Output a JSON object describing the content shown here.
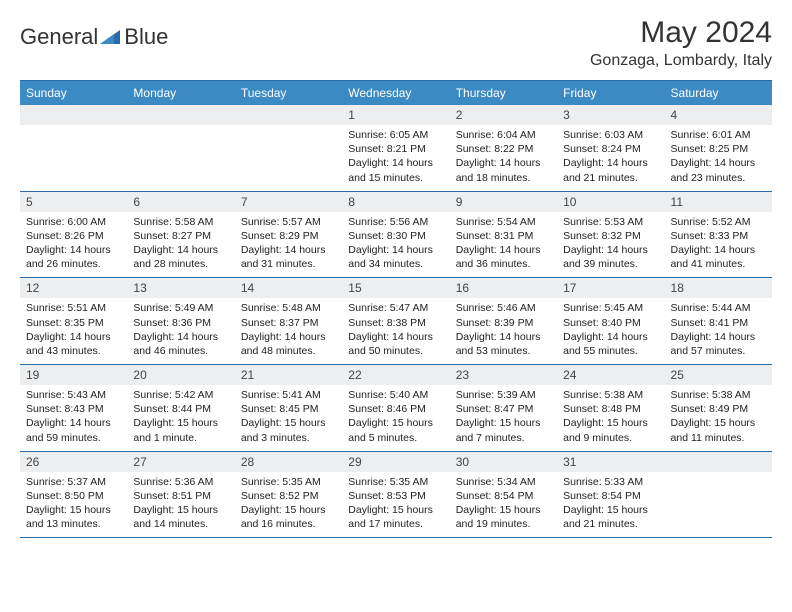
{
  "colors": {
    "header_bar": "#3b8ac4",
    "border": "#2a6ca8",
    "daynum_bg": "#eceef0",
    "text": "#222222",
    "title": "#333333"
  },
  "logo": {
    "text1": "General",
    "text2": "Blue"
  },
  "title": "May 2024",
  "location": "Gonzaga, Lombardy, Italy",
  "daynames": [
    "Sunday",
    "Monday",
    "Tuesday",
    "Wednesday",
    "Thursday",
    "Friday",
    "Saturday"
  ],
  "weeks": [
    [
      null,
      null,
      null,
      {
        "n": "1",
        "sunrise": "6:05 AM",
        "sunset": "8:21 PM",
        "daylight": "14 hours and 15 minutes."
      },
      {
        "n": "2",
        "sunrise": "6:04 AM",
        "sunset": "8:22 PM",
        "daylight": "14 hours and 18 minutes."
      },
      {
        "n": "3",
        "sunrise": "6:03 AM",
        "sunset": "8:24 PM",
        "daylight": "14 hours and 21 minutes."
      },
      {
        "n": "4",
        "sunrise": "6:01 AM",
        "sunset": "8:25 PM",
        "daylight": "14 hours and 23 minutes."
      }
    ],
    [
      {
        "n": "5",
        "sunrise": "6:00 AM",
        "sunset": "8:26 PM",
        "daylight": "14 hours and 26 minutes."
      },
      {
        "n": "6",
        "sunrise": "5:58 AM",
        "sunset": "8:27 PM",
        "daylight": "14 hours and 28 minutes."
      },
      {
        "n": "7",
        "sunrise": "5:57 AM",
        "sunset": "8:29 PM",
        "daylight": "14 hours and 31 minutes."
      },
      {
        "n": "8",
        "sunrise": "5:56 AM",
        "sunset": "8:30 PM",
        "daylight": "14 hours and 34 minutes."
      },
      {
        "n": "9",
        "sunrise": "5:54 AM",
        "sunset": "8:31 PM",
        "daylight": "14 hours and 36 minutes."
      },
      {
        "n": "10",
        "sunrise": "5:53 AM",
        "sunset": "8:32 PM",
        "daylight": "14 hours and 39 minutes."
      },
      {
        "n": "11",
        "sunrise": "5:52 AM",
        "sunset": "8:33 PM",
        "daylight": "14 hours and 41 minutes."
      }
    ],
    [
      {
        "n": "12",
        "sunrise": "5:51 AM",
        "sunset": "8:35 PM",
        "daylight": "14 hours and 43 minutes."
      },
      {
        "n": "13",
        "sunrise": "5:49 AM",
        "sunset": "8:36 PM",
        "daylight": "14 hours and 46 minutes."
      },
      {
        "n": "14",
        "sunrise": "5:48 AM",
        "sunset": "8:37 PM",
        "daylight": "14 hours and 48 minutes."
      },
      {
        "n": "15",
        "sunrise": "5:47 AM",
        "sunset": "8:38 PM",
        "daylight": "14 hours and 50 minutes."
      },
      {
        "n": "16",
        "sunrise": "5:46 AM",
        "sunset": "8:39 PM",
        "daylight": "14 hours and 53 minutes."
      },
      {
        "n": "17",
        "sunrise": "5:45 AM",
        "sunset": "8:40 PM",
        "daylight": "14 hours and 55 minutes."
      },
      {
        "n": "18",
        "sunrise": "5:44 AM",
        "sunset": "8:41 PM",
        "daylight": "14 hours and 57 minutes."
      }
    ],
    [
      {
        "n": "19",
        "sunrise": "5:43 AM",
        "sunset": "8:43 PM",
        "daylight": "14 hours and 59 minutes."
      },
      {
        "n": "20",
        "sunrise": "5:42 AM",
        "sunset": "8:44 PM",
        "daylight": "15 hours and 1 minute."
      },
      {
        "n": "21",
        "sunrise": "5:41 AM",
        "sunset": "8:45 PM",
        "daylight": "15 hours and 3 minutes."
      },
      {
        "n": "22",
        "sunrise": "5:40 AM",
        "sunset": "8:46 PM",
        "daylight": "15 hours and 5 minutes."
      },
      {
        "n": "23",
        "sunrise": "5:39 AM",
        "sunset": "8:47 PM",
        "daylight": "15 hours and 7 minutes."
      },
      {
        "n": "24",
        "sunrise": "5:38 AM",
        "sunset": "8:48 PM",
        "daylight": "15 hours and 9 minutes."
      },
      {
        "n": "25",
        "sunrise": "5:38 AM",
        "sunset": "8:49 PM",
        "daylight": "15 hours and 11 minutes."
      }
    ],
    [
      {
        "n": "26",
        "sunrise": "5:37 AM",
        "sunset": "8:50 PM",
        "daylight": "15 hours and 13 minutes."
      },
      {
        "n": "27",
        "sunrise": "5:36 AM",
        "sunset": "8:51 PM",
        "daylight": "15 hours and 14 minutes."
      },
      {
        "n": "28",
        "sunrise": "5:35 AM",
        "sunset": "8:52 PM",
        "daylight": "15 hours and 16 minutes."
      },
      {
        "n": "29",
        "sunrise": "5:35 AM",
        "sunset": "8:53 PM",
        "daylight": "15 hours and 17 minutes."
      },
      {
        "n": "30",
        "sunrise": "5:34 AM",
        "sunset": "8:54 PM",
        "daylight": "15 hours and 19 minutes."
      },
      {
        "n": "31",
        "sunrise": "5:33 AM",
        "sunset": "8:54 PM",
        "daylight": "15 hours and 21 minutes."
      },
      null
    ]
  ],
  "labels": {
    "sunrise": "Sunrise:",
    "sunset": "Sunset:",
    "daylight": "Daylight:"
  }
}
